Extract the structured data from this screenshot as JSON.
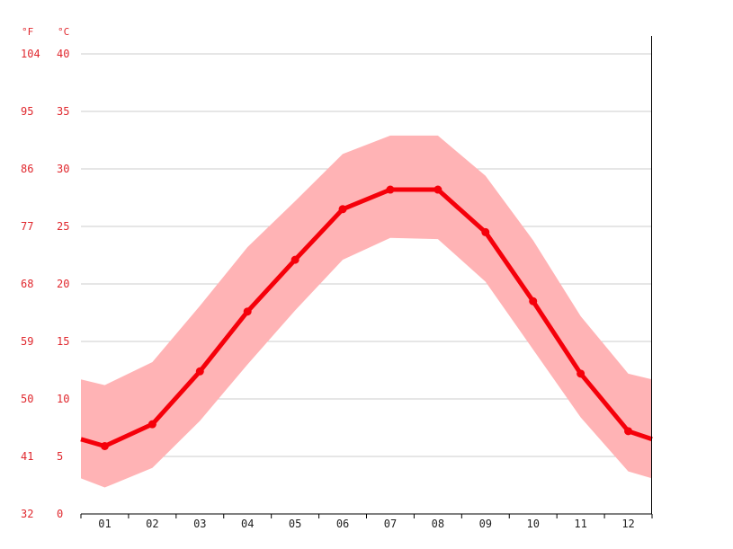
{
  "chart_data": {
    "type": "line",
    "title": "",
    "xlabel": "",
    "ylabel": "",
    "units": {
      "fahrenheit": "°F",
      "celsius": "°C"
    },
    "categories": [
      "01",
      "02",
      "03",
      "04",
      "05",
      "06",
      "07",
      "08",
      "09",
      "10",
      "11",
      "12"
    ],
    "yticks_c": [
      "0",
      "5",
      "10",
      "15",
      "20",
      "25",
      "30",
      "35",
      "40"
    ],
    "yticks_f": [
      "32",
      "41",
      "50",
      "59",
      "68",
      "77",
      "86",
      "95",
      "104"
    ],
    "ylim": [
      0,
      40
    ],
    "grid": true,
    "legend": "none",
    "colors": {
      "line": "#f5000a",
      "band": "#ffb3b5",
      "tick_text": "#e0282e",
      "grid": "#cccccc",
      "axis": "#000000"
    },
    "series": [
      {
        "values": [
          5.9,
          7.8,
          12.4,
          17.6,
          22.1,
          26.5,
          28.2,
          28.2,
          24.5,
          18.5,
          12.2,
          7.2
        ]
      },
      {
        "values": [
          11.2,
          13.2,
          18.1,
          23.2,
          27.2,
          31.3,
          32.9,
          32.9,
          29.4,
          23.8,
          17.2,
          12.2
        ]
      },
      {
        "values": [
          2.3,
          4.0,
          8.1,
          13.0,
          17.7,
          22.1,
          24.0,
          23.9,
          20.2,
          14.3,
          8.4,
          3.7
        ]
      }
    ],
    "edge_values": {
      "mean": [
        6.5,
        6.5
      ],
      "high": [
        11.7,
        11.7
      ],
      "low": [
        3.1,
        3.1
      ]
    }
  }
}
